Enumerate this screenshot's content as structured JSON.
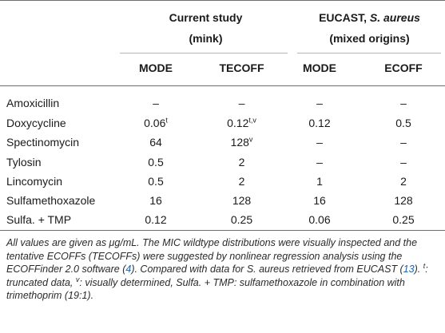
{
  "header": {
    "group1_line1": "Current study",
    "group1_line2": "(mink)",
    "group2_line1_prefix": "EUCAST, ",
    "group2_line1_italic": "S. aureus",
    "group2_line2": "(mixed origins)",
    "col1": "MODE",
    "col2": "TECOFF",
    "col3": "MODE",
    "col4": "ECOFF"
  },
  "rows": [
    {
      "drug": "Amoxicillin",
      "c1": "–",
      "c1_sup": "",
      "c2": "–",
      "c2_sup": "",
      "c3": "–",
      "c4": "–"
    },
    {
      "drug": "Doxycycline",
      "c1": "0.06",
      "c1_sup": "t",
      "c2": "0.12",
      "c2_sup": "t,v",
      "c3": "0.12",
      "c4": "0.5"
    },
    {
      "drug": "Spectinomycin",
      "c1": "64",
      "c1_sup": "",
      "c2": "128",
      "c2_sup": "v",
      "c3": "–",
      "c4": "–"
    },
    {
      "drug": "Tylosin",
      "c1": "0.5",
      "c1_sup": "",
      "c2": "2",
      "c2_sup": "",
      "c3": "–",
      "c4": "–"
    },
    {
      "drug": "Lincomycin",
      "c1": "0.5",
      "c1_sup": "",
      "c2": "2",
      "c2_sup": "",
      "c3": "1",
      "c4": "2"
    },
    {
      "drug": "Sulfamethoxazole",
      "c1": "16",
      "c1_sup": "",
      "c2": "128",
      "c2_sup": "",
      "c3": "16",
      "c4": "128"
    },
    {
      "drug": "Sulfa. + TMP",
      "c1": "0.12",
      "c1_sup": "",
      "c2": "0.25",
      "c2_sup": "",
      "c3": "0.06",
      "c4": "0.25"
    }
  ],
  "footnote": {
    "part1": "All values are given as μg/mL. The MIC wildtype distributions were visually inspected and the tentative ECOFFs (TECOFFs) were suggested by nonlinear regression analysis using the ECOFFinder 2.0 software (",
    "ref1": "4",
    "part2": "). Compared with data for S. aureus retrieved from EUCAST (",
    "ref2": "13",
    "part3": "). ",
    "sup_t": "t",
    "part4": ": truncated data, ",
    "sup_v": "v",
    "part5": ": visually determined, Sulfa. + TMP: sulfamethoxazole in combination with trimethoprim (19:1)."
  }
}
